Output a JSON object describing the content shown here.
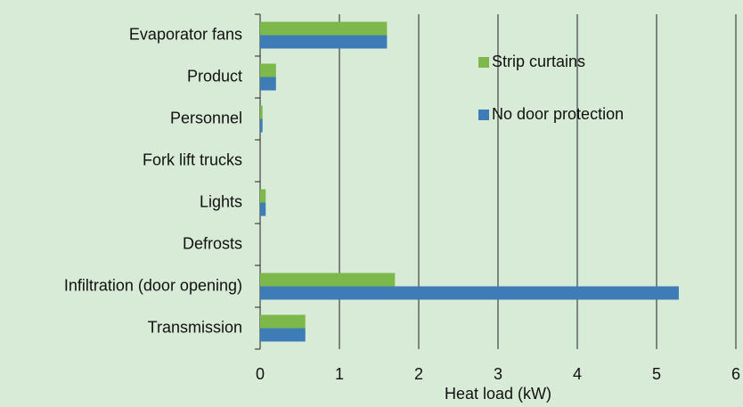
{
  "chart_data": {
    "type": "hbar",
    "categories": [
      "Evaporator fans",
      "Product",
      "Personnel",
      "Fork lift trucks",
      "Lights",
      "Defrosts",
      "Infiltration (door opening)",
      "Transmission"
    ],
    "series": [
      {
        "name": "Strip curtains",
        "color": "#7cb84a",
        "values": [
          1.6,
          0.2,
          0.03,
          0,
          0.07,
          0,
          1.7,
          0.57
        ]
      },
      {
        "name": "No door protection",
        "color": "#3e7cb8",
        "values": [
          1.6,
          0.2,
          0.03,
          0,
          0.07,
          0,
          5.28,
          0.57
        ]
      }
    ],
    "xlabel": "Heat load (kW)",
    "xlim": [
      0,
      6
    ],
    "xticks": [
      0,
      1,
      2,
      3,
      4,
      5,
      6
    ],
    "grid": true
  }
}
